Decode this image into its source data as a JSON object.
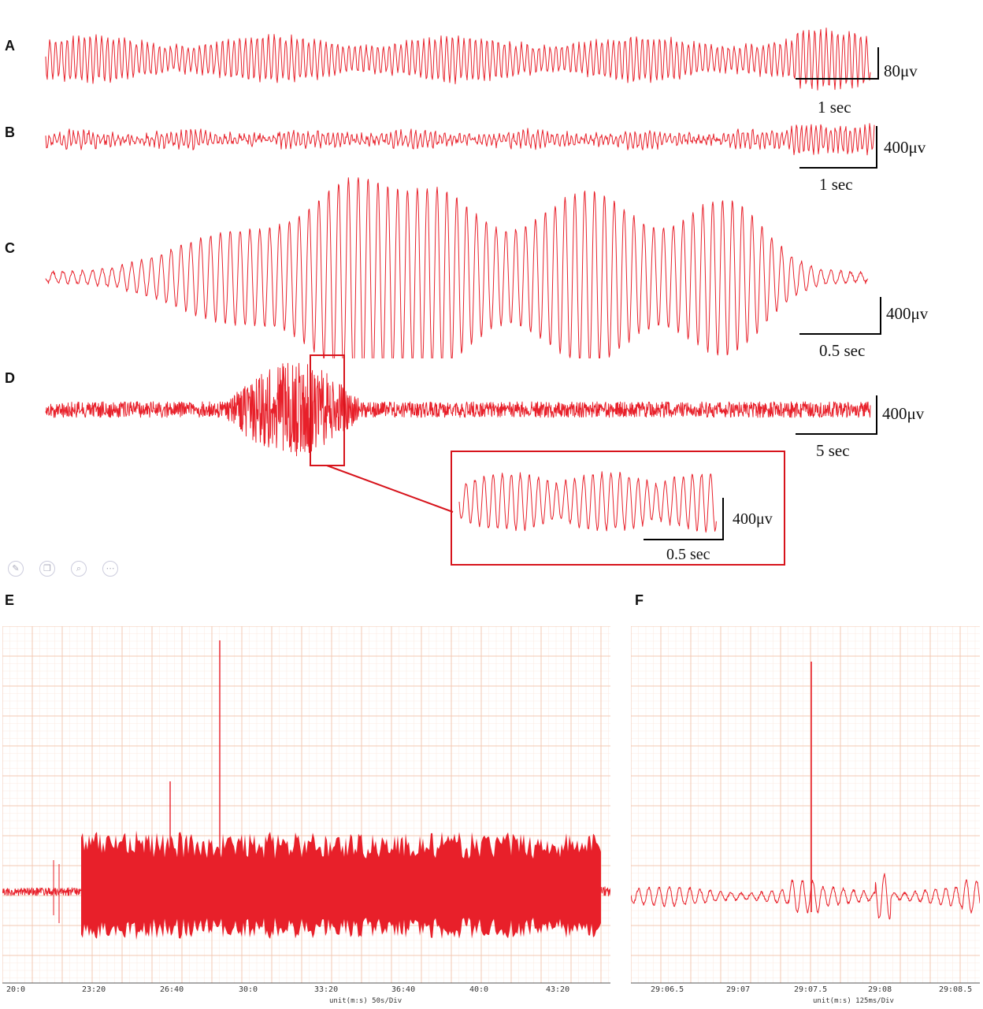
{
  "chart_data": [
    {
      "panel": "A",
      "type": "line",
      "scale_amplitude": "80μv",
      "scale_time": "1 sec"
    },
    {
      "panel": "B",
      "type": "line",
      "scale_amplitude": "400μv",
      "scale_time": "1 sec"
    },
    {
      "panel": "C",
      "type": "line",
      "scale_amplitude": "400μv",
      "scale_time": "0.5 sec"
    },
    {
      "panel": "D",
      "type": "line",
      "scale_amplitude": "400μv",
      "scale_time": "5 sec",
      "inset": {
        "scale_amplitude": "400μv",
        "scale_time": "0.5 sec"
      }
    },
    {
      "panel": "E",
      "type": "line",
      "grid": true,
      "x_ticks": [
        "20:0",
        "23:20",
        "26:40",
        "30:0",
        "33:20",
        "36:40",
        "40:0",
        "43:20"
      ],
      "unit_label": "unit(m:s) 50s/Div"
    },
    {
      "panel": "F",
      "type": "line",
      "grid": true,
      "x_ticks": [
        "29:06.5",
        "29:07",
        "29:07.5",
        "29:08",
        "29:08.5"
      ],
      "unit_label": "unit(m:s) 125ms/Div"
    }
  ],
  "colors": {
    "trace": "#e8202a",
    "grid_major": "#f4c9b4",
    "grid_minor": "#fbe8df",
    "box": "#d7141c",
    "scalebar": "#000000"
  },
  "toolbar_icons": [
    "pen-icon",
    "copy-icon",
    "zoom-icon",
    "more-icon"
  ]
}
